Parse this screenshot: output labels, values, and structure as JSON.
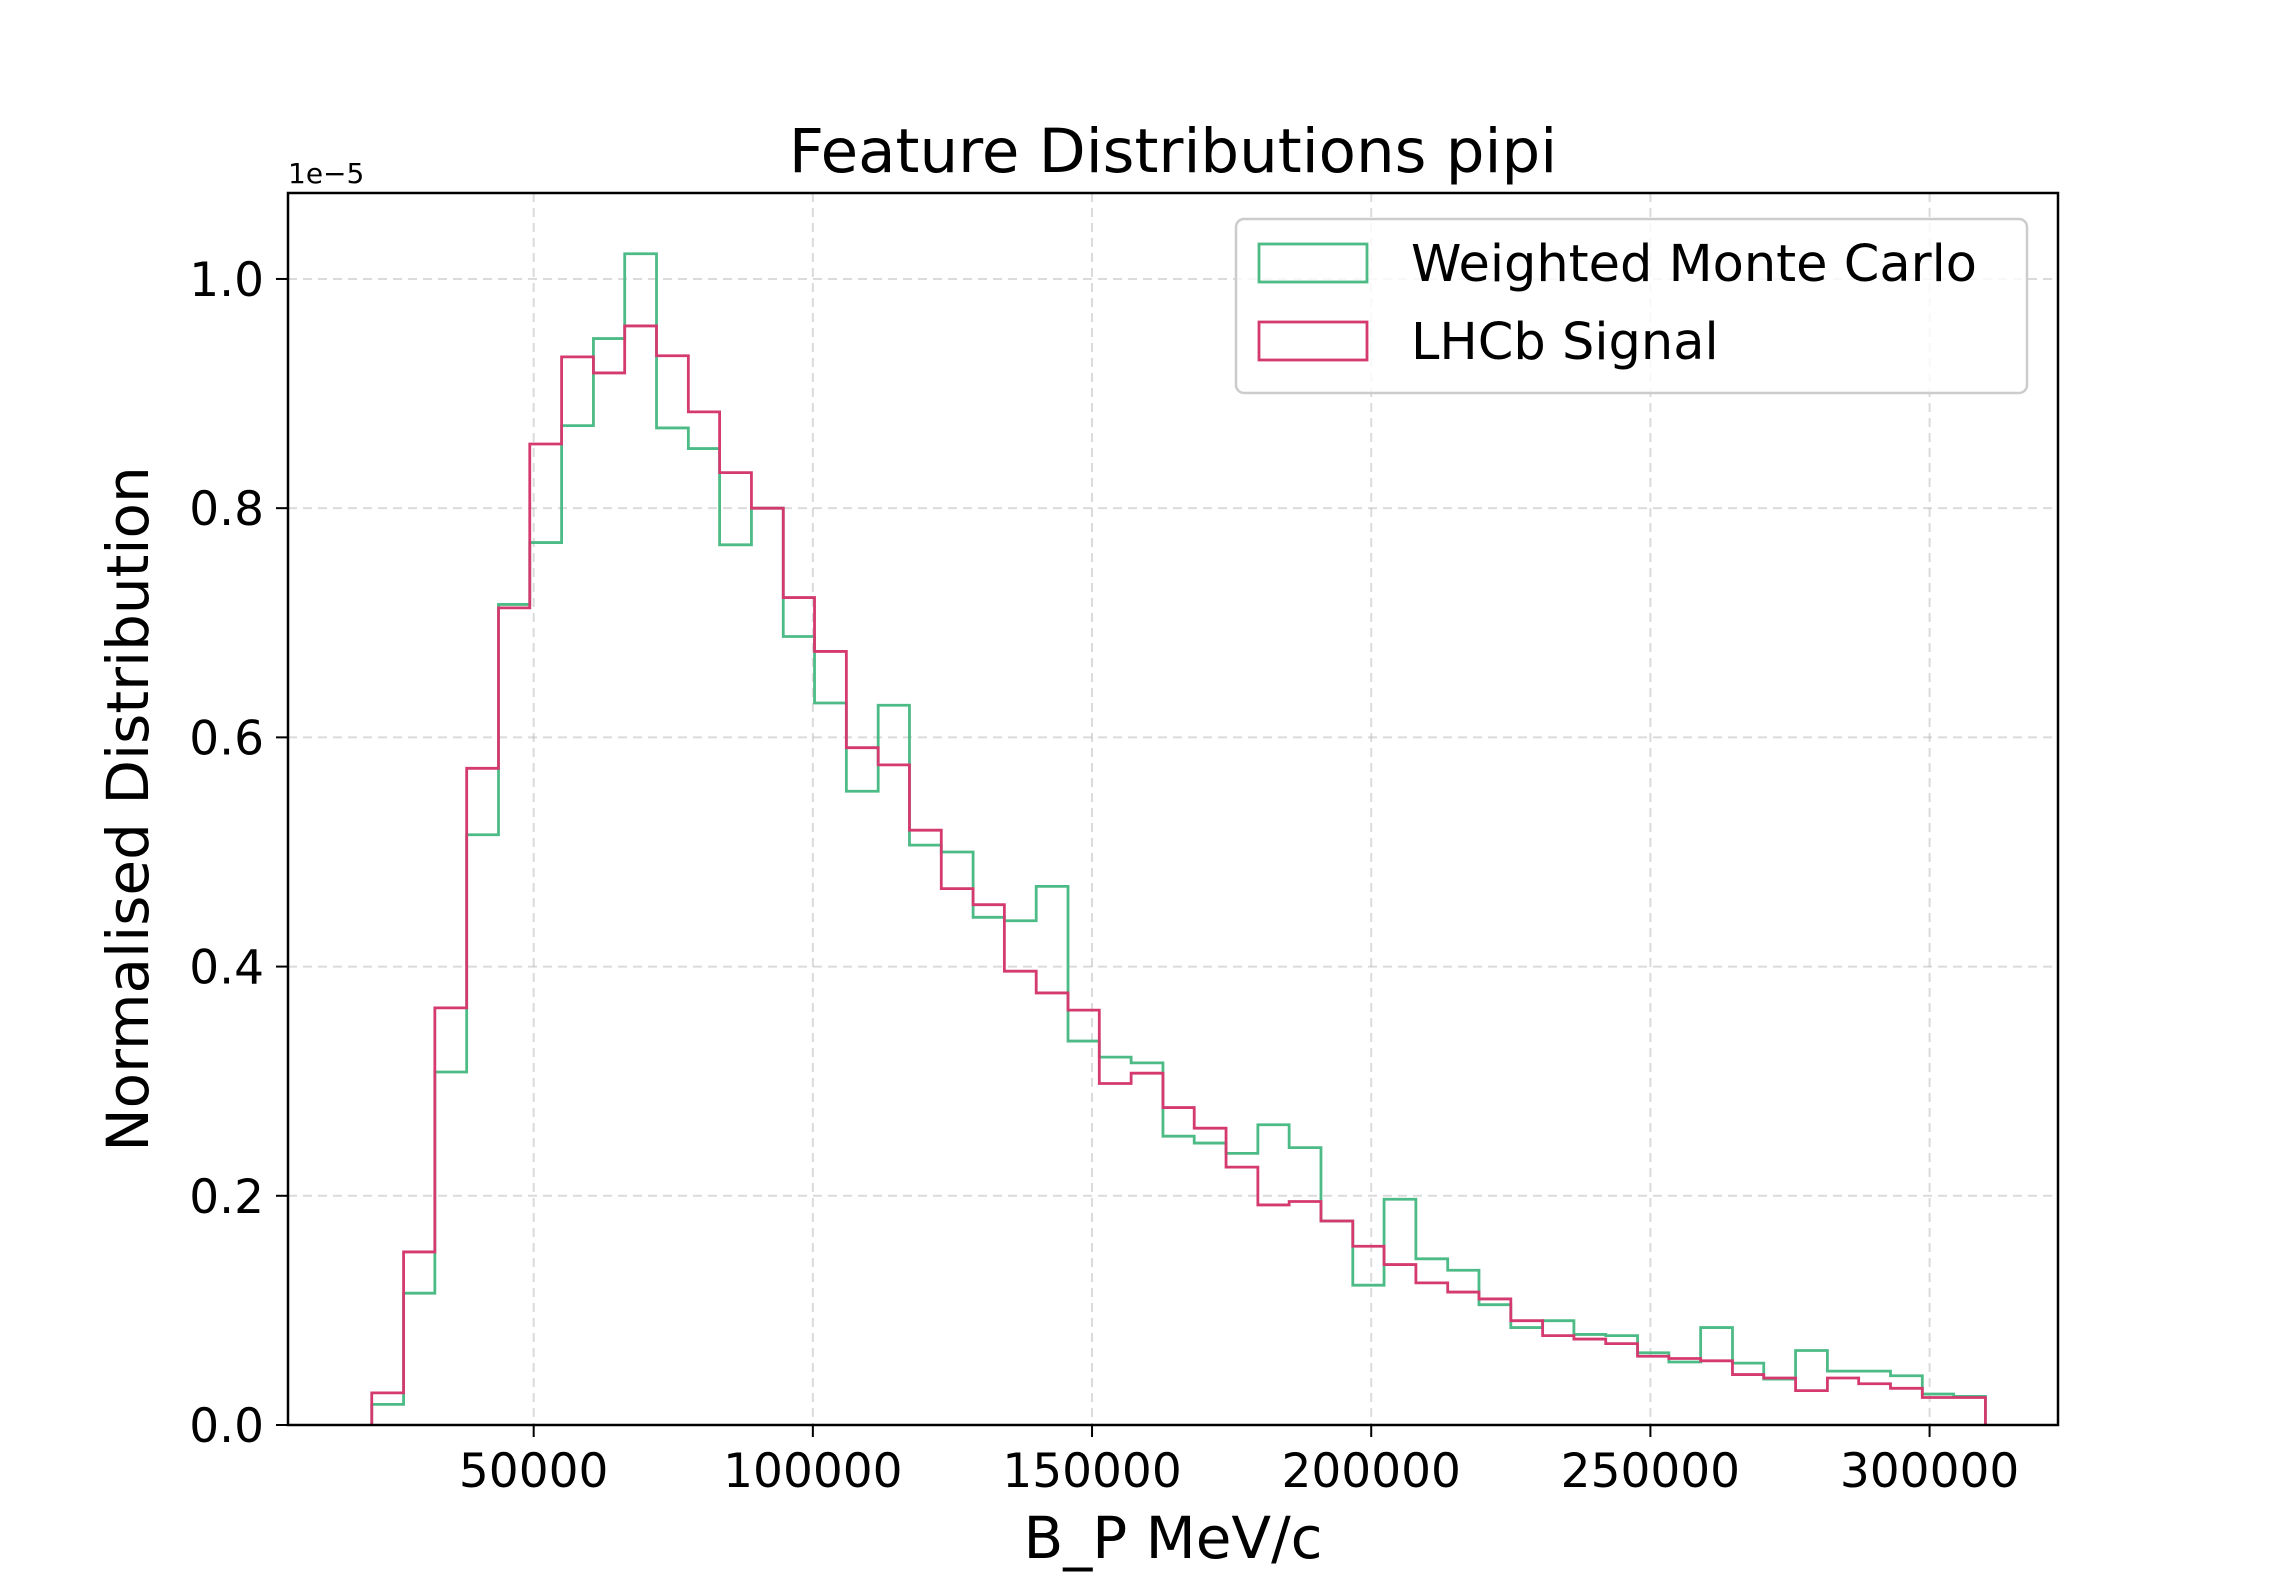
{
  "chart_data": {
    "type": "histogram",
    "title": "Feature Distributions pipi",
    "xlabel": "B_P MeV/c",
    "ylabel": "Normalised Distribution",
    "y_offset_label": "1e−5",
    "xlim": [
      6000,
      323000
    ],
    "ylim": [
      0,
      1.075
    ],
    "xticks": [
      50000,
      100000,
      150000,
      200000,
      250000,
      300000
    ],
    "xtick_labels": [
      "50000",
      "100000",
      "150000",
      "200000",
      "250000",
      "300000"
    ],
    "yticks": [
      0.0,
      0.2,
      0.4,
      0.6,
      0.8,
      1.0
    ],
    "ytick_labels": [
      "0.0",
      "0.2",
      "0.4",
      "0.6",
      "0.8",
      "1.0"
    ],
    "grid": true,
    "legend_position": "top-right",
    "bin_edges": [
      21000,
      26700,
      32300,
      38000,
      43700,
      49300,
      55000,
      60700,
      66300,
      72000,
      77700,
      83300,
      89000,
      94700,
      100300,
      106000,
      111700,
      117300,
      123000,
      128700,
      134300,
      140000,
      145700,
      151300,
      157000,
      162700,
      168300,
      174000,
      179700,
      185300,
      191000,
      196700,
      202300,
      208000,
      213700,
      219300,
      225000,
      230700,
      236300,
      242000,
      247700,
      253300,
      259000,
      264700,
      270300,
      276000,
      281700,
      287300,
      293000,
      298700,
      304300,
      310000
    ],
    "series": [
      {
        "name": "Weighted Monte Carlo",
        "color": "#4dbb86",
        "values": [
          0.018,
          0.115,
          0.308,
          0.515,
          0.716,
          0.77,
          0.872,
          0.948,
          1.022,
          0.87,
          0.852,
          0.768,
          0.8,
          0.688,
          0.63,
          0.553,
          0.628,
          0.506,
          0.5,
          0.443,
          0.44,
          0.47,
          0.335,
          0.321,
          0.316,
          0.252,
          0.246,
          0.237,
          0.262,
          0.242,
          0.178,
          0.122,
          0.197,
          0.145,
          0.135,
          0.105,
          0.085,
          0.091,
          0.079,
          0.078,
          0.063,
          0.055,
          0.085,
          0.054,
          0.04,
          0.065,
          0.047,
          0.047,
          0.043,
          0.027,
          0.025
        ]
      },
      {
        "name": "LHCb Signal",
        "color": "#d43a6f",
        "values": [
          0.028,
          0.151,
          0.364,
          0.573,
          0.713,
          0.856,
          0.932,
          0.918,
          0.959,
          0.933,
          0.884,
          0.831,
          0.8,
          0.722,
          0.675,
          0.591,
          0.576,
          0.519,
          0.468,
          0.454,
          0.396,
          0.377,
          0.362,
          0.298,
          0.307,
          0.277,
          0.259,
          0.225,
          0.192,
          0.195,
          0.178,
          0.156,
          0.14,
          0.124,
          0.116,
          0.11,
          0.091,
          0.078,
          0.075,
          0.071,
          0.06,
          0.058,
          0.056,
          0.044,
          0.041,
          0.03,
          0.041,
          0.036,
          0.032,
          0.024,
          0.024
        ]
      }
    ]
  }
}
